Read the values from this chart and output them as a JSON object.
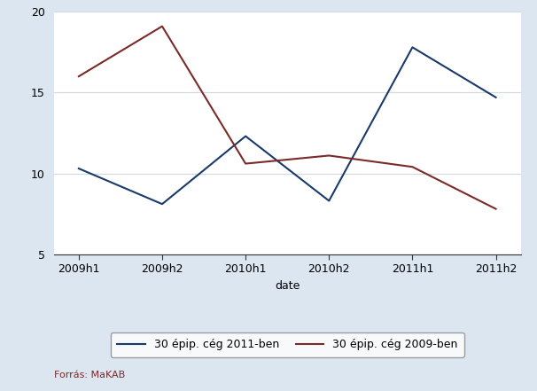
{
  "x_labels": [
    "2009h1",
    "2009h2",
    "2010h1",
    "2010h2",
    "2011h1",
    "2011h2"
  ],
  "x_values": [
    0,
    1,
    2,
    3,
    4,
    5
  ],
  "series_2011": [
    10.3,
    8.1,
    12.3,
    8.3,
    17.8,
    14.7
  ],
  "series_2009": [
    16.0,
    19.1,
    10.6,
    11.1,
    10.4,
    7.8
  ],
  "color_2011": "#1a3a6b",
  "color_2009": "#7b2a2a",
  "ylim": [
    5,
    20
  ],
  "yticks": [
    5,
    10,
    15,
    20
  ],
  "xlabel": "date",
  "legend_2011": "30 épip. cég 2011-ben",
  "legend_2009": "30 épip. cég 2009-ben",
  "source_text": "Forrás: MaKAB",
  "bg_color": "#dce6f0",
  "plot_bg_color": "#ffffff",
  "grid_color": "#d0d8e0",
  "linewidth": 1.5
}
